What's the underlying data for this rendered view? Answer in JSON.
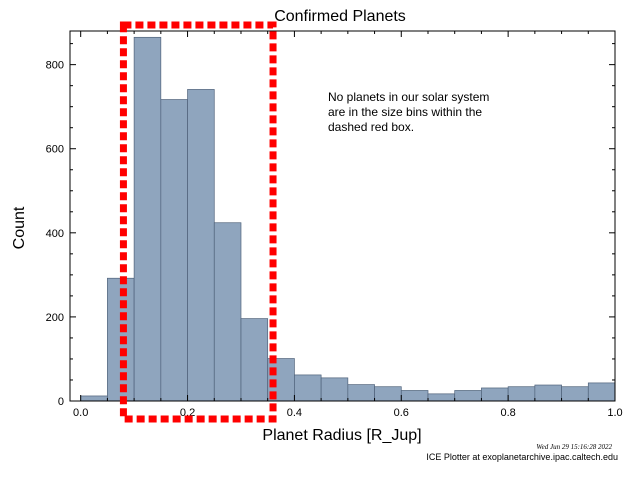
{
  "chart_data": {
    "type": "bar",
    "title": "Confirmed Planets",
    "xlabel": "Planet Radius [R_Jup]",
    "ylabel": "Count",
    "xlim": [
      -0.02,
      1.0
    ],
    "ylim": [
      0,
      880
    ],
    "x_ticks": [
      {
        "value": 0.0,
        "label": "0.0"
      },
      {
        "value": 0.2,
        "label": "0.2"
      },
      {
        "value": 0.4,
        "label": "0.4"
      },
      {
        "value": 0.6,
        "label": "0.6"
      },
      {
        "value": 0.8,
        "label": "0.8"
      },
      {
        "value": 1.0,
        "label": "1.0"
      }
    ],
    "y_ticks": [
      {
        "value": 0,
        "label": "0"
      },
      {
        "value": 200,
        "label": "200"
      },
      {
        "value": 400,
        "label": "400"
      },
      {
        "value": 600,
        "label": "600"
      },
      {
        "value": 800,
        "label": "800"
      }
    ],
    "bin_width": 0.05,
    "bins": [
      {
        "start": 0.0,
        "count": 12
      },
      {
        "start": 0.05,
        "count": 292
      },
      {
        "start": 0.1,
        "count": 865
      },
      {
        "start": 0.15,
        "count": 717
      },
      {
        "start": 0.2,
        "count": 741
      },
      {
        "start": 0.25,
        "count": 424
      },
      {
        "start": 0.3,
        "count": 196
      },
      {
        "start": 0.35,
        "count": 101
      },
      {
        "start": 0.4,
        "count": 62
      },
      {
        "start": 0.45,
        "count": 55
      },
      {
        "start": 0.5,
        "count": 39
      },
      {
        "start": 0.55,
        "count": 34
      },
      {
        "start": 0.6,
        "count": 25
      },
      {
        "start": 0.65,
        "count": 17
      },
      {
        "start": 0.7,
        "count": 25
      },
      {
        "start": 0.75,
        "count": 31
      },
      {
        "start": 0.8,
        "count": 34
      },
      {
        "start": 0.85,
        "count": 38
      },
      {
        "start": 0.9,
        "count": 34
      },
      {
        "start": 0.95,
        "count": 43
      }
    ],
    "bar_color": "#8fa5be",
    "highlight_box": {
      "x_from": 0.08,
      "x_to": 0.36,
      "color": "#ff0000",
      "style": "dashed"
    },
    "grid": false
  },
  "annotation": [
    "No planets in our solar system",
    "are in the size bins within the",
    "dashed red box."
  ],
  "timestamp": "Wed Jun 29 15:16:28 2022",
  "credit": "ICE Plotter at exoplanetarchive.ipac.caltech.edu"
}
